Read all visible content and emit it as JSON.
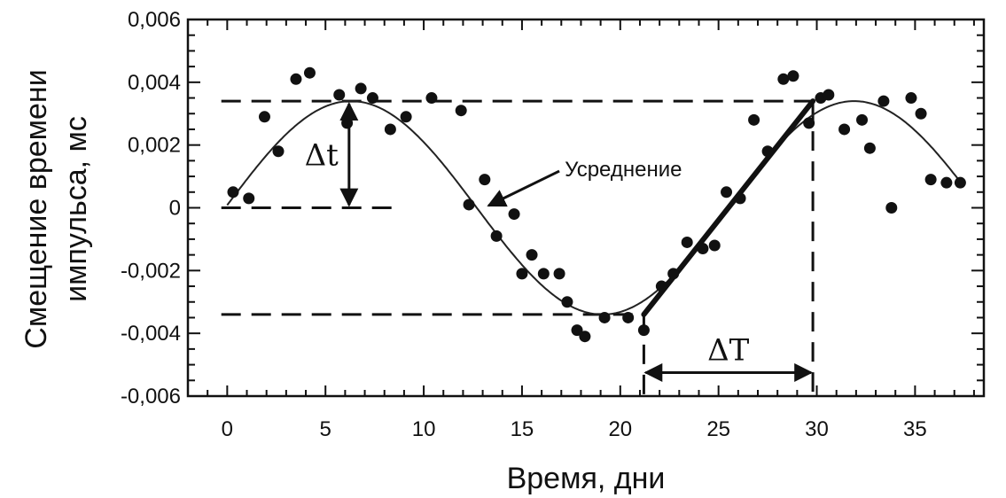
{
  "chart_data": {
    "type": "scatter",
    "title": "",
    "xlabel": "Время, дни",
    "ylabel_lines": [
      "Смещение времени",
      "импульса, мс"
    ],
    "xlim": [
      -2,
      38.5
    ],
    "ylim": [
      -0.006,
      0.006
    ],
    "x_ticks": [
      0,
      5,
      10,
      15,
      20,
      25,
      30,
      35
    ],
    "x_tick_labels": [
      "0",
      "5",
      "10",
      "15",
      "20",
      "25",
      "30",
      "35"
    ],
    "y_ticks": [
      0.006,
      0.004,
      0.002,
      0,
      -0.002,
      -0.004,
      -0.006
    ],
    "y_tick_labels": [
      "0,006",
      "0,004",
      "0,002",
      "0",
      "-0,002",
      "-0,004",
      "-0,006"
    ],
    "grid": false,
    "series": [
      {
        "kind": "points",
        "x": [
          0.3,
          1.1,
          1.9,
          2.6,
          3.5,
          4.2,
          5.7,
          6.1,
          6.8,
          7.4,
          8.3,
          9.1,
          10.4,
          11.9,
          12.3,
          13.1,
          13.7,
          14.6,
          15.0,
          15.5,
          16.1,
          16.9,
          17.3,
          17.8,
          18.2,
          19.2,
          20.4,
          21.2,
          22.1,
          22.7,
          23.4,
          24.2,
          24.8,
          25.4,
          26.1,
          26.8,
          27.5,
          28.3,
          28.8,
          29.6,
          30.2,
          30.6,
          31.4,
          32.3,
          32.7,
          33.4,
          33.8,
          34.8,
          35.3,
          35.8,
          36.6,
          37.3
        ],
        "y": [
          0.0005,
          0.0003,
          0.0029,
          0.0018,
          0.0041,
          0.0043,
          0.0036,
          0.0027,
          0.0038,
          0.0035,
          0.0025,
          0.0029,
          0.0035,
          0.0031,
          0.0001,
          0.0009,
          -0.0009,
          -0.0002,
          -0.0021,
          -0.0015,
          -0.0021,
          -0.0021,
          -0.003,
          -0.0039,
          -0.0041,
          -0.0035,
          -0.0035,
          -0.0039,
          -0.0025,
          -0.0021,
          -0.0011,
          -0.0013,
          -0.0012,
          0.0005,
          0.0003,
          0.0028,
          0.0018,
          0.0041,
          0.0042,
          0.0027,
          0.0035,
          0.0036,
          0.0025,
          0.0028,
          0.0019,
          0.0034,
          0.0,
          0.0035,
          0.003,
          0.0009,
          0.0008,
          0.0008
        ]
      },
      {
        "kind": "fit",
        "name": "Усреднение",
        "model": "sine",
        "amplitude": 0.0034,
        "period_days": 25.6,
        "peak_day": 6.3
      }
    ],
    "annotations": {
      "fit_label": "Усреднение",
      "delta_t": "Δt",
      "delta_T": "ΔT",
      "max_level": 0.0034,
      "min_level": -0.0034,
      "min_day": 21.2,
      "max_day": 29.8
    }
  }
}
